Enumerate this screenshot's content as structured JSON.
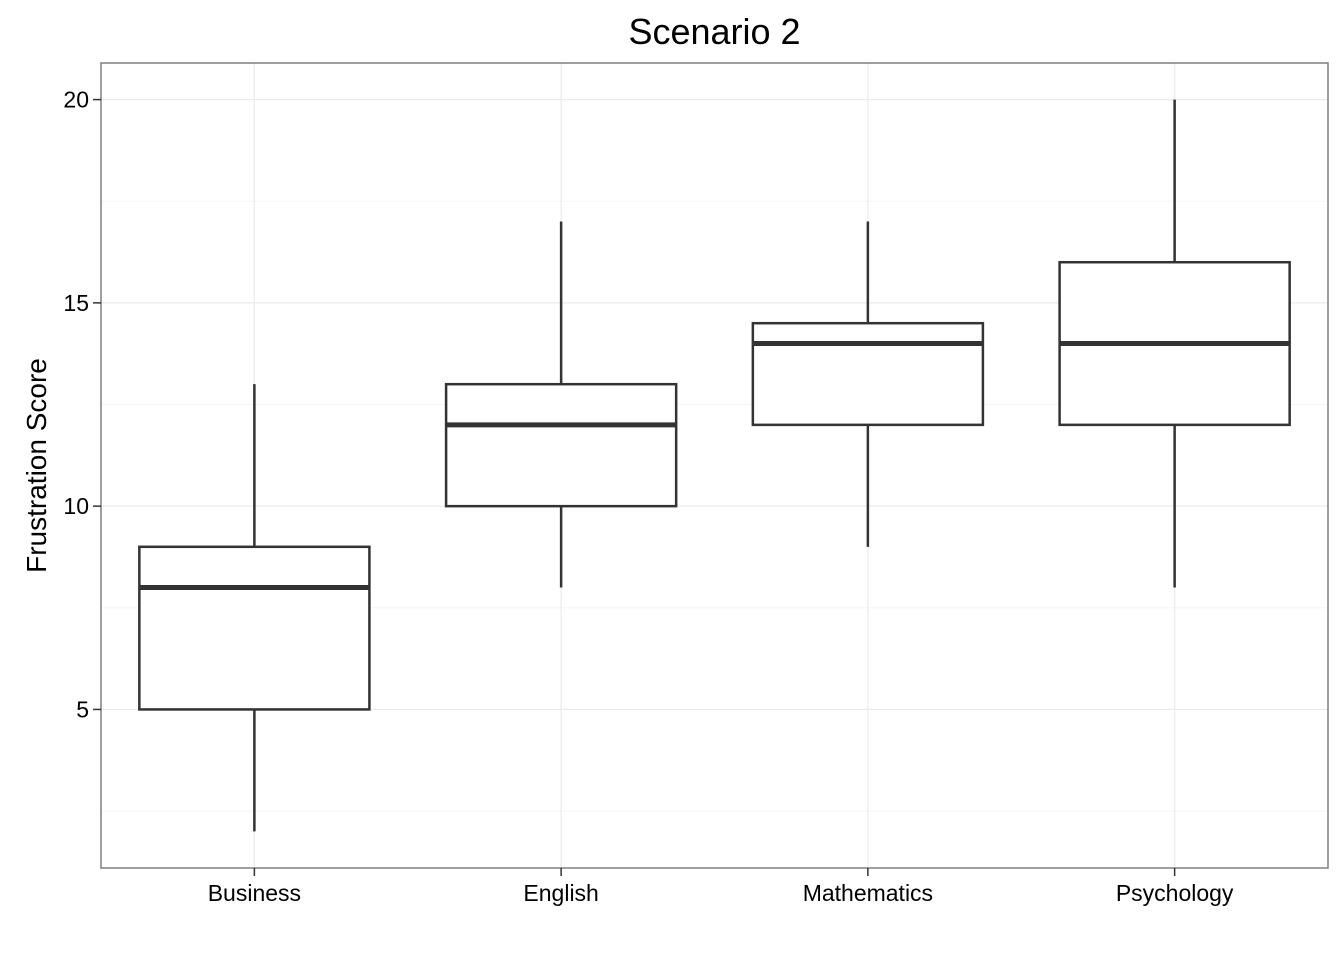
{
  "chart_data": {
    "type": "boxplot",
    "title": "Scenario 2",
    "xlabel": "",
    "ylabel": "Frustration Score",
    "categories": [
      "Business",
      "English",
      "Mathematics",
      "Psychology"
    ],
    "boxes": [
      {
        "category": "Business",
        "min": 2,
        "q1": 5,
        "median": 8,
        "q3": 9,
        "max": 13
      },
      {
        "category": "English",
        "min": 8,
        "q1": 10,
        "median": 12,
        "q3": 13,
        "max": 17
      },
      {
        "category": "Mathematics",
        "min": 9,
        "q1": 12,
        "median": 14,
        "q3": 14.5,
        "max": 17
      },
      {
        "category": "Psychology",
        "min": 8,
        "q1": 12,
        "median": 14,
        "q3": 16,
        "max": 20
      }
    ],
    "ylim": [
      1.1,
      20.9
    ],
    "yticks": [
      5,
      10,
      15,
      20
    ],
    "yticklabels": [
      "5",
      "10",
      "15",
      "20"
    ],
    "grid": true,
    "legend": "none",
    "colors": {
      "box_stroke": "#333333",
      "box_fill": "#ffffff",
      "grid_major": "#ebebeb",
      "grid_minor": "#f5f5f5",
      "panel_border": "#7f7f7f",
      "tick": "#333333"
    }
  }
}
